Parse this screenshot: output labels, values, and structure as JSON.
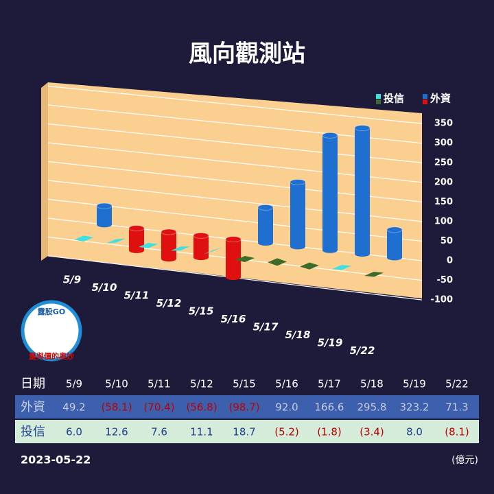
{
  "chart_data": {
    "type": "bar",
    "title": "風向觀測站",
    "categories": [
      "5/9",
      "5/10",
      "5/11",
      "5/12",
      "5/15",
      "5/16",
      "5/17",
      "5/18",
      "5/19",
      "5/22"
    ],
    "series": [
      {
        "name": "外資",
        "color": "#1f6fd0",
        "negative_color": "#e01010",
        "values": [
          49.2,
          -58.1,
          -70.4,
          -56.8,
          -98.7,
          92.0,
          166.6,
          295.8,
          323.2,
          71.3
        ],
        "value_labels": [
          "49.2",
          "(58.1)",
          "(70.4)",
          "(56.8)",
          "(98.7)",
          "92.0",
          "166.6",
          "295.8",
          "323.2",
          "71.3"
        ]
      },
      {
        "name": "投信",
        "color": "#3fe0e0",
        "negative_color": "#3d6b2a",
        "values": [
          6.0,
          12.6,
          7.6,
          11.1,
          18.7,
          -5.2,
          -1.8,
          -3.4,
          8.0,
          -8.1
        ],
        "value_labels": [
          "6.0",
          "12.6",
          "7.6",
          "11.1",
          "18.7",
          "(5.2)",
          "(1.8)",
          "(3.4)",
          "8.0",
          "(8.1)"
        ]
      }
    ],
    "ylim": [
      -100,
      350
    ],
    "yticks": [
      -100,
      -50,
      0,
      50,
      100,
      150,
      200,
      250,
      300,
      350
    ],
    "grid": true,
    "table_header": "日期",
    "date": "2023-05-22",
    "unit": "(億元)",
    "logo_top": "露股GO",
    "logo_bottom": "量與價的奧妙"
  }
}
